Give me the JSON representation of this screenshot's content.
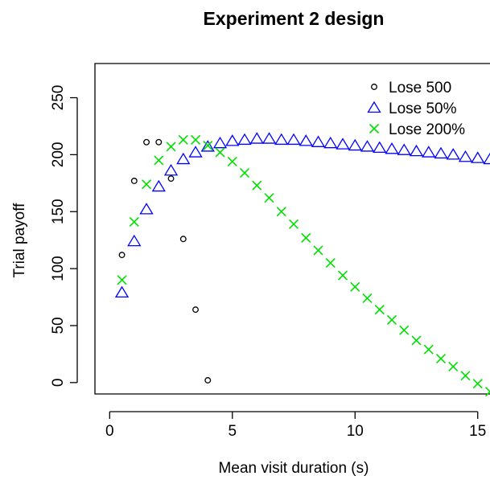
{
  "chart_data": {
    "type": "scatter",
    "title": "Experiment 2 design",
    "xlabel": "Mean visit duration (s)",
    "ylabel": "Trial payoff",
    "xlim": [
      -0.6,
      15.5
    ],
    "ylim": [
      -10,
      280
    ],
    "xticks": [
      0,
      5,
      10,
      15
    ],
    "yticks": [
      0,
      50,
      100,
      150,
      200,
      250
    ],
    "legend_position": "top-right",
    "series": [
      {
        "name": "Lose 500",
        "marker": "circle",
        "color": "#000000",
        "points": [
          [
            0.5,
            112
          ],
          [
            1,
            177
          ],
          [
            1.5,
            211
          ],
          [
            2,
            211
          ],
          [
            2.5,
            179
          ],
          [
            3,
            126
          ],
          [
            3.5,
            64
          ],
          [
            4,
            2
          ]
        ]
      },
      {
        "name": "Lose 50%",
        "marker": "triangle",
        "color": "#0000ff",
        "points": [
          [
            0.5,
            79
          ],
          [
            1,
            124
          ],
          [
            1.5,
            152
          ],
          [
            2,
            172
          ],
          [
            2.5,
            186
          ],
          [
            3,
            196
          ],
          [
            3.5,
            202
          ],
          [
            4,
            207
          ],
          [
            4.5,
            210
          ],
          [
            5,
            212
          ],
          [
            5.5,
            213
          ],
          [
            6,
            214
          ],
          [
            6.5,
            214
          ],
          [
            7,
            213
          ],
          [
            7.5,
            213
          ],
          [
            8,
            212
          ],
          [
            8.5,
            211
          ],
          [
            9,
            210
          ],
          [
            9.5,
            209
          ],
          [
            10,
            208
          ],
          [
            10.5,
            207
          ],
          [
            11,
            206
          ],
          [
            11.5,
            205
          ],
          [
            12,
            204
          ],
          [
            12.5,
            203
          ],
          [
            13,
            202
          ],
          [
            13.5,
            201
          ],
          [
            14,
            200
          ],
          [
            14.5,
            198
          ],
          [
            15,
            197
          ],
          [
            15.5,
            196
          ]
        ]
      },
      {
        "name": "Lose 200%",
        "marker": "x",
        "color": "#00e000",
        "points": [
          [
            0.5,
            90
          ],
          [
            1,
            141
          ],
          [
            1.5,
            174
          ],
          [
            2,
            195
          ],
          [
            2.5,
            207
          ],
          [
            3,
            213
          ],
          [
            3.5,
            213
          ],
          [
            4,
            208
          ],
          [
            4.5,
            202
          ],
          [
            5,
            194
          ],
          [
            5.5,
            184
          ],
          [
            6,
            173
          ],
          [
            6.5,
            162
          ],
          [
            7,
            150
          ],
          [
            7.5,
            139
          ],
          [
            8,
            127
          ],
          [
            8.5,
            116
          ],
          [
            9,
            105
          ],
          [
            9.5,
            94
          ],
          [
            10,
            84
          ],
          [
            10.5,
            74
          ],
          [
            11,
            64
          ],
          [
            11.5,
            55
          ],
          [
            12,
            46
          ],
          [
            12.5,
            37
          ],
          [
            13,
            29
          ],
          [
            13.5,
            21
          ],
          [
            14,
            14
          ],
          [
            14.5,
            6
          ],
          [
            15,
            -1
          ],
          [
            15.5,
            -8
          ]
        ]
      }
    ]
  }
}
